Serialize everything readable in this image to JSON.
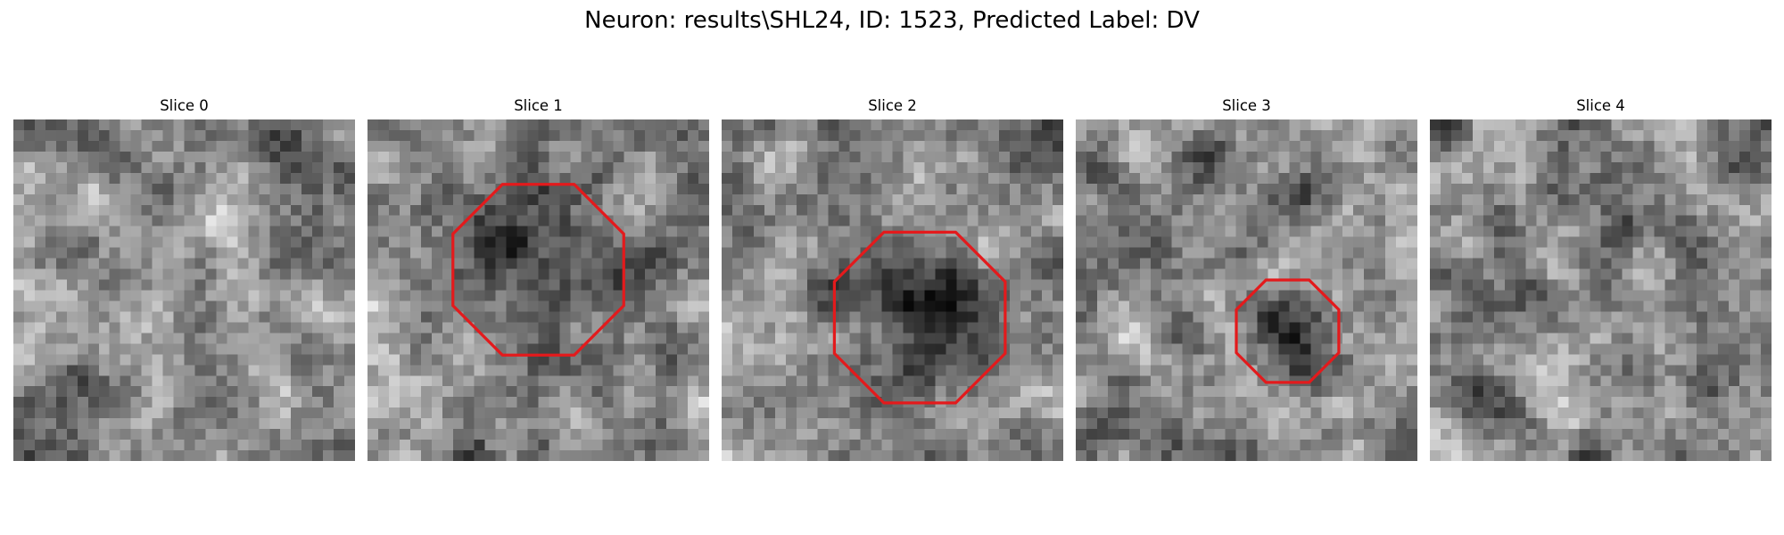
{
  "figure": {
    "title": "Neuron: results\\SHL24, ID: 1523, Predicted Label: DV"
  },
  "panels": [
    {
      "title": "Slice 0",
      "seed": 11,
      "blob": null,
      "contour": false
    },
    {
      "title": "Slice 1",
      "seed": 23,
      "blob": [
        0.5,
        0.44,
        0.25,
        0.44
      ],
      "contour": true
    },
    {
      "title": "Slice 2",
      "seed": 37,
      "blob": [
        0.58,
        0.58,
        0.25,
        0.38
      ],
      "contour": true
    },
    {
      "title": "Slice 3",
      "seed": 41,
      "blob": [
        0.62,
        0.62,
        0.15,
        0.22
      ],
      "contour": true
    },
    {
      "title": "Slice 4",
      "seed": 59,
      "blob": null,
      "contour": false
    }
  ],
  "colors": {
    "contour": "#e31a1c",
    "colormap": "gray"
  }
}
